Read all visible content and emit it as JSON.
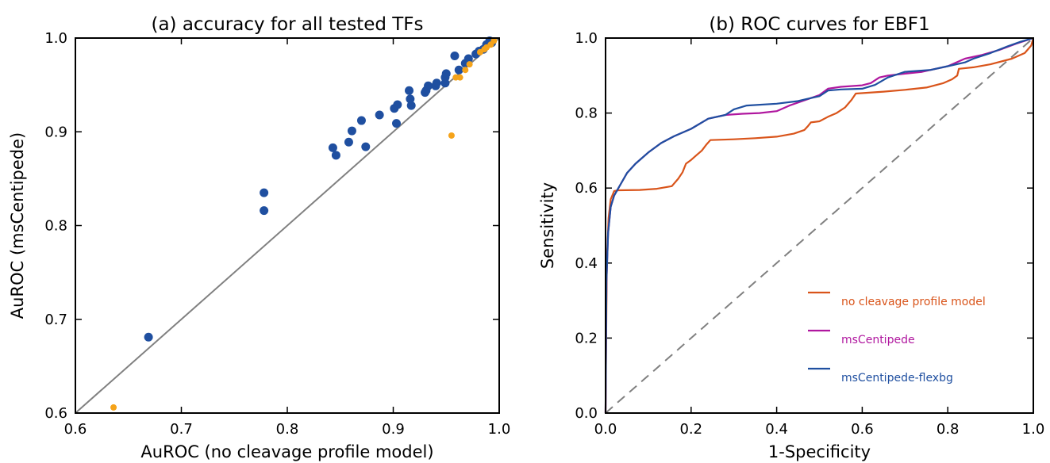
{
  "chart_data": [
    {
      "type": "scatter",
      "title": "(a) accuracy for all tested TFs",
      "xlabel": "AuROC (no cleavage profile model)",
      "ylabel": "AuROC (msCentipede)",
      "xlim": [
        0.6,
        1.0
      ],
      "ylim": [
        0.6,
        1.0
      ],
      "xticks": [
        "0.6",
        "0.7",
        "0.8",
        "0.9",
        "1.0"
      ],
      "yticks": [
        "0.6",
        "0.7",
        "0.8",
        "0.9",
        "1.0"
      ],
      "grid": false,
      "diagonal_color": "#808080",
      "series": [
        {
          "color": "#1f4fa0",
          "points": [
            [
              0.669,
              0.681
            ],
            [
              0.778,
              0.835
            ],
            [
              0.778,
              0.816
            ],
            [
              0.843,
              0.883
            ],
            [
              0.846,
              0.875
            ],
            [
              0.858,
              0.889
            ],
            [
              0.861,
              0.901
            ],
            [
              0.87,
              0.912
            ],
            [
              0.874,
              0.884
            ],
            [
              0.887,
              0.918
            ],
            [
              0.901,
              0.925
            ],
            [
              0.904,
              0.929
            ],
            [
              0.903,
              0.909
            ],
            [
              0.915,
              0.944
            ],
            [
              0.916,
              0.935
            ],
            [
              0.917,
              0.928
            ],
            [
              0.93,
              0.942
            ],
            [
              0.931,
              0.944
            ],
            [
              0.933,
              0.949
            ],
            [
              0.94,
              0.949
            ],
            [
              0.941,
              0.952
            ],
            [
              0.949,
              0.952
            ],
            [
              0.949,
              0.958
            ],
            [
              0.95,
              0.962
            ],
            [
              0.958,
              0.981
            ],
            [
              0.962,
              0.966
            ],
            [
              0.968,
              0.973
            ],
            [
              0.971,
              0.978
            ],
            [
              0.978,
              0.983
            ],
            [
              0.981,
              0.986
            ],
            [
              0.985,
              0.988
            ],
            [
              0.988,
              0.993
            ],
            [
              0.991,
              0.997
            ],
            [
              0.993,
              0.995
            ]
          ]
        },
        {
          "color": "#f5a31a",
          "points": [
            [
              0.636,
              0.606
            ],
            [
              0.955,
              0.896
            ],
            [
              0.959,
              0.958
            ],
            [
              0.963,
              0.958
            ],
            [
              0.968,
              0.966
            ],
            [
              0.972,
              0.972
            ],
            [
              0.982,
              0.985
            ],
            [
              0.986,
              0.988
            ],
            [
              0.988,
              0.99
            ],
            [
              0.992,
              0.993
            ],
            [
              0.995,
              0.997
            ]
          ]
        }
      ]
    },
    {
      "type": "line",
      "title": "(b) ROC curves for EBF1",
      "xlabel": "1-Specificity",
      "ylabel": "Sensitivity",
      "xlim": [
        0.0,
        1.0
      ],
      "ylim": [
        0.0,
        1.0
      ],
      "xticks": [
        "0.0",
        "0.2",
        "0.4",
        "0.6",
        "0.8",
        "1.0"
      ],
      "yticks": [
        "0.0",
        "0.2",
        "0.4",
        "0.6",
        "0.8",
        "1.0"
      ],
      "grid": false,
      "legend_position": "lower-right",
      "diagonal_color": "#808080",
      "series": [
        {
          "name": "no cleavage profile model",
          "color": "#d9541a",
          "points": [
            [
              0,
              0
            ],
            [
              0.003,
              0.4
            ],
            [
              0.007,
              0.52
            ],
            [
              0.012,
              0.57
            ],
            [
              0.02,
              0.592
            ],
            [
              0.03,
              0.594
            ],
            [
              0.08,
              0.595
            ],
            [
              0.12,
              0.598
            ],
            [
              0.155,
              0.605
            ],
            [
              0.17,
              0.625
            ],
            [
              0.18,
              0.642
            ],
            [
              0.188,
              0.665
            ],
            [
              0.2,
              0.675
            ],
            [
              0.215,
              0.69
            ],
            [
              0.225,
              0.7
            ],
            [
              0.235,
              0.715
            ],
            [
              0.245,
              0.728
            ],
            [
              0.3,
              0.73
            ],
            [
              0.35,
              0.733
            ],
            [
              0.4,
              0.737
            ],
            [
              0.44,
              0.745
            ],
            [
              0.465,
              0.755
            ],
            [
              0.473,
              0.765
            ],
            [
              0.48,
              0.775
            ],
            [
              0.5,
              0.778
            ],
            [
              0.52,
              0.79
            ],
            [
              0.54,
              0.8
            ],
            [
              0.56,
              0.815
            ],
            [
              0.575,
              0.835
            ],
            [
              0.585,
              0.852
            ],
            [
              0.65,
              0.857
            ],
            [
              0.7,
              0.862
            ],
            [
              0.75,
              0.868
            ],
            [
              0.79,
              0.88
            ],
            [
              0.81,
              0.89
            ],
            [
              0.822,
              0.9
            ],
            [
              0.826,
              0.918
            ],
            [
              0.86,
              0.922
            ],
            [
              0.9,
              0.93
            ],
            [
              0.95,
              0.945
            ],
            [
              0.98,
              0.96
            ],
            [
              0.995,
              0.98
            ],
            [
              1.0,
              1.0
            ]
          ]
        },
        {
          "name": "msCentipede",
          "color": "#b0179f",
          "points": [
            [
              0,
              0
            ],
            [
              0.002,
              0.35
            ],
            [
              0.006,
              0.48
            ],
            [
              0.012,
              0.55
            ],
            [
              0.02,
              0.58
            ],
            [
              0.035,
              0.61
            ],
            [
              0.05,
              0.64
            ],
            [
              0.07,
              0.665
            ],
            [
              0.1,
              0.695
            ],
            [
              0.13,
              0.72
            ],
            [
              0.16,
              0.738
            ],
            [
              0.2,
              0.758
            ],
            [
              0.24,
              0.785
            ],
            [
              0.28,
              0.795
            ],
            [
              0.32,
              0.798
            ],
            [
              0.36,
              0.8
            ],
            [
              0.4,
              0.805
            ],
            [
              0.43,
              0.82
            ],
            [
              0.46,
              0.832
            ],
            [
              0.5,
              0.848
            ],
            [
              0.52,
              0.865
            ],
            [
              0.55,
              0.87
            ],
            [
              0.6,
              0.874
            ],
            [
              0.62,
              0.88
            ],
            [
              0.64,
              0.895
            ],
            [
              0.66,
              0.9
            ],
            [
              0.7,
              0.905
            ],
            [
              0.74,
              0.91
            ],
            [
              0.76,
              0.915
            ],
            [
              0.8,
              0.925
            ],
            [
              0.84,
              0.945
            ],
            [
              0.88,
              0.955
            ],
            [
              0.92,
              0.968
            ],
            [
              0.96,
              0.985
            ],
            [
              1.0,
              1.0
            ]
          ]
        },
        {
          "name": "msCentipede-flexbg",
          "color": "#1f4fa0",
          "points": [
            [
              0,
              0
            ],
            [
              0.002,
              0.35
            ],
            [
              0.006,
              0.48
            ],
            [
              0.012,
              0.55
            ],
            [
              0.02,
              0.58
            ],
            [
              0.035,
              0.61
            ],
            [
              0.05,
              0.64
            ],
            [
              0.07,
              0.665
            ],
            [
              0.1,
              0.695
            ],
            [
              0.13,
              0.72
            ],
            [
              0.16,
              0.738
            ],
            [
              0.2,
              0.758
            ],
            [
              0.24,
              0.785
            ],
            [
              0.28,
              0.795
            ],
            [
              0.3,
              0.81
            ],
            [
              0.33,
              0.82
            ],
            [
              0.4,
              0.825
            ],
            [
              0.45,
              0.832
            ],
            [
              0.48,
              0.84
            ],
            [
              0.5,
              0.845
            ],
            [
              0.52,
              0.86
            ],
            [
              0.55,
              0.863
            ],
            [
              0.6,
              0.865
            ],
            [
              0.63,
              0.875
            ],
            [
              0.66,
              0.895
            ],
            [
              0.7,
              0.91
            ],
            [
              0.76,
              0.915
            ],
            [
              0.8,
              0.925
            ],
            [
              0.84,
              0.935
            ],
            [
              0.86,
              0.945
            ],
            [
              0.9,
              0.96
            ],
            [
              0.94,
              0.978
            ],
            [
              0.97,
              0.99
            ],
            [
              1.0,
              1.0
            ]
          ]
        }
      ]
    }
  ]
}
